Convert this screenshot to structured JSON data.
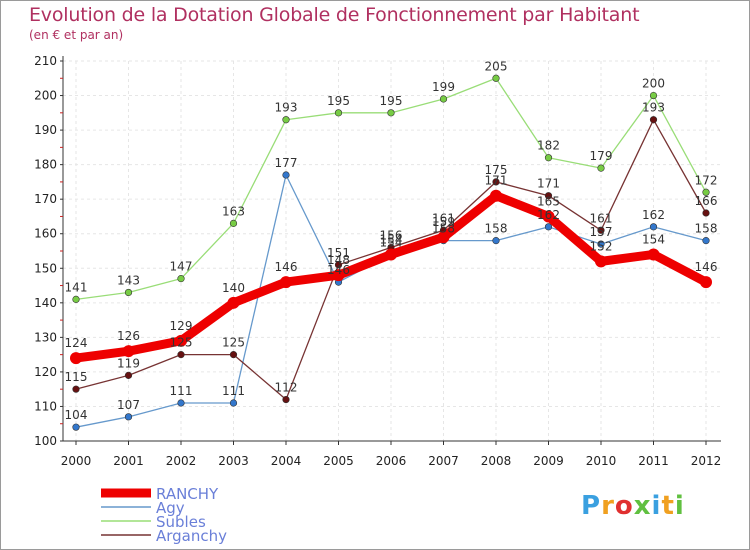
{
  "title": "Evolution de la Dotation Globale de Fonctionnement par Habitant",
  "subtitle": "(en € et par an)",
  "logo": {
    "text": "Proxiti",
    "letter_colors": [
      "#3aa0e0",
      "#f0a020",
      "#e03030",
      "#60c040",
      "#3aa0e0",
      "#f0a020",
      "#60c040"
    ]
  },
  "chart_data": {
    "type": "line",
    "title": "Evolution de la Dotation Globale de Fonctionnement par Habitant",
    "subtitle": "(en € et par an)",
    "xlabel": "",
    "ylabel": "",
    "x": [
      "2000",
      "2001",
      "2002",
      "2003",
      "2004",
      "2005",
      "2006",
      "2007",
      "2008",
      "2009",
      "2010",
      "2011",
      "2012"
    ],
    "ylim": [
      100,
      210
    ],
    "yticks": [
      "100",
      "110",
      "120",
      "130",
      "140",
      "150",
      "160",
      "170",
      "180",
      "190",
      "200",
      "210"
    ],
    "grid": true,
    "legend_position": "bottom-left",
    "series": [
      {
        "name": "Subles",
        "color": "#99dd77",
        "marker": "#77cc44",
        "width": 1.3,
        "values": [
          141,
          143,
          147,
          163,
          193,
          195,
          195,
          199,
          205,
          182,
          179,
          200,
          172
        ],
        "labels": [
          "141",
          "143",
          "147",
          "163",
          "193",
          "195",
          "195",
          "199",
          "205",
          "182",
          "179",
          "200",
          "172"
        ]
      },
      {
        "name": "Agy",
        "color": "#6699cc",
        "marker": "#3377cc",
        "width": 1.3,
        "values": [
          104,
          107,
          111,
          111,
          177,
          146,
          154,
          158,
          158,
          162,
          157,
          162,
          158
        ],
        "labels": [
          "104",
          "107",
          "111",
          "111",
          "177",
          "146",
          "154",
          "158",
          "158",
          "162",
          "157",
          "162",
          "158"
        ]
      },
      {
        "name": "Arganchy",
        "color": "#773333",
        "marker": "#661111",
        "width": 1.3,
        "values": [
          115,
          119,
          125,
          125,
          112,
          151,
          156,
          161,
          175,
          171,
          161,
          193,
          166
        ],
        "labels": [
          "115",
          "119",
          "125",
          "125",
          "112",
          "151",
          "156",
          "161",
          "175",
          "171",
          "161",
          "193",
          "166"
        ]
      },
      {
        "name": "RANCHY",
        "color": "#ee0000",
        "marker": "#ee0000",
        "width": 9,
        "values": [
          124,
          126,
          129,
          140,
          146,
          148,
          154,
          159,
          171,
          165,
          152,
          154,
          146
        ],
        "labels": [
          "124",
          "126",
          "129",
          "140",
          "146",
          "148",
          "154",
          "159",
          "171",
          "165",
          "152",
          "154",
          "146"
        ]
      }
    ],
    "legend": [
      "RANCHY",
      "Agy",
      "Subles",
      "Arganchy"
    ]
  }
}
